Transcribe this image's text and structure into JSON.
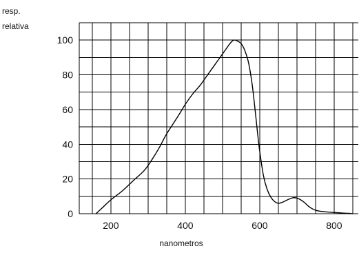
{
  "chart_data": {
    "type": "line",
    "title": "",
    "xlabel": "nanometros",
    "ylabel_lines": [
      "resp.",
      "relativa"
    ],
    "xlim": [
      115,
      865
    ],
    "ylim": [
      0,
      110
    ],
    "x_ticks": [
      200,
      400,
      600,
      800
    ],
    "y_ticks": [
      0,
      20,
      40,
      60,
      80,
      100
    ],
    "grid": true,
    "grid_x_step": 50,
    "grid_y_step": 10,
    "colors": {
      "line": "#000000",
      "grid": "#000000",
      "background": "#ffffff"
    },
    "series": [
      {
        "x": [
          160,
          180,
          200,
          230,
          260,
          290,
          310,
          330,
          350,
          380,
          400,
          420,
          440,
          460,
          480,
          500,
          510,
          520,
          530,
          540,
          550,
          560,
          570,
          580,
          590,
          595,
          600,
          610,
          620,
          630,
          640,
          650,
          660,
          670,
          680,
          690,
          700,
          710,
          720,
          730,
          740,
          750,
          760,
          780,
          800,
          820,
          840,
          850
        ],
        "y": [
          0,
          4,
          8,
          13,
          19,
          25,
          31,
          38,
          46,
          56,
          63,
          69,
          74,
          80,
          86,
          92,
          95,
          98,
          100,
          99.5,
          98,
          94,
          87,
          74,
          55,
          45,
          36,
          22,
          14,
          9.5,
          7,
          6,
          6.5,
          7.5,
          8.5,
          9.2,
          9,
          8,
          6.5,
          4.5,
          3,
          2,
          1.5,
          1,
          0.7,
          0.4,
          0.2,
          0
        ]
      }
    ]
  }
}
